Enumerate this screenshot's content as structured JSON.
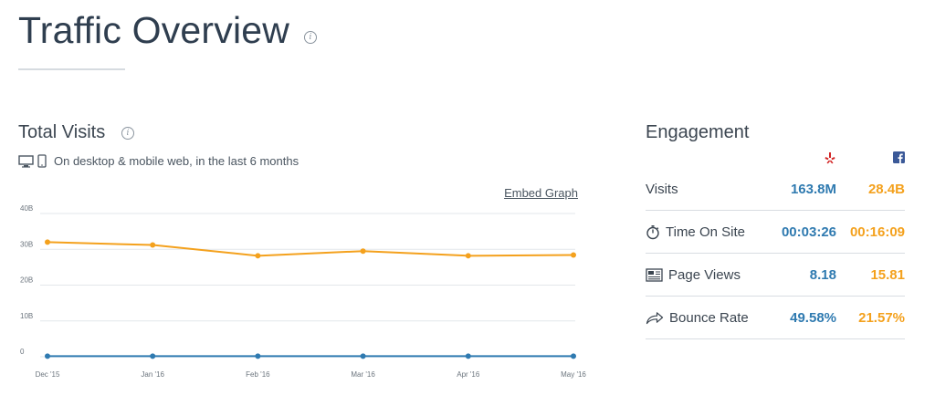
{
  "header": {
    "title": "Traffic Overview"
  },
  "visits": {
    "title": "Total Visits",
    "subtitle": "On desktop & mobile web, in the last 6 months",
    "embed_label": "Embed Graph"
  },
  "chart_data": {
    "type": "line",
    "x": [
      "Dec '15",
      "Jan '16",
      "Feb '16",
      "Mar '16",
      "Apr '16",
      "May '16"
    ],
    "y_ticks": [
      "40B",
      "30B",
      "20B",
      "10B",
      "0"
    ],
    "ylim": [
      0,
      40
    ],
    "series": [
      {
        "color": "#f4a11d",
        "values": [
          32.0,
          31.2,
          28.2,
          29.5,
          28.2,
          28.4
        ]
      },
      {
        "color": "#2f7ab0",
        "values": [
          0.16,
          0.16,
          0.16,
          0.16,
          0.16,
          0.16
        ]
      }
    ],
    "grid": true
  },
  "engagement": {
    "title": "Engagement",
    "brands": [
      {
        "icon": "yelp-icon",
        "color": "#d32323"
      },
      {
        "icon": "facebook-icon",
        "color": "#3b5998"
      }
    ],
    "metrics": [
      {
        "label": "Visits",
        "icon": "",
        "a": "163.8M",
        "b": "28.4B"
      },
      {
        "label": "Time On Site",
        "icon": "stopwatch-icon",
        "a": "00:03:26",
        "b": "00:16:09"
      },
      {
        "label": "Page Views",
        "icon": "page-views-icon",
        "a": "8.18",
        "b": "15.81"
      },
      {
        "label": "Bounce Rate",
        "icon": "bounce-arrow-icon",
        "a": "49.58%",
        "b": "21.57%"
      }
    ]
  },
  "colors": {
    "accent_blue": "#2f7ab0",
    "accent_orange": "#f4a11d"
  }
}
